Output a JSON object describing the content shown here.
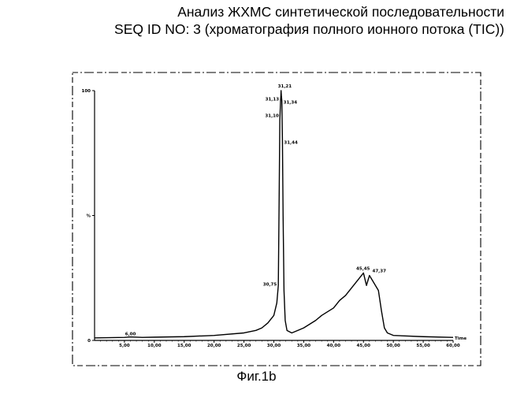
{
  "title": {
    "line1": "Анализ ЖХМС синтетической последовательности",
    "line2": "SEQ ID NO: 3 (хроматография полного ионного потока (TIC))"
  },
  "caption": "Фиг.1b",
  "chart_data": {
    "type": "line",
    "x_unit_label": "Time",
    "xlim": [
      0,
      60
    ],
    "ylim": [
      0,
      100
    ],
    "x_ticks": [
      "5,00",
      "10,00",
      "15,00",
      "20,00",
      "25,00",
      "30,00",
      "35,00",
      "40,00",
      "45,00",
      "50,00",
      "55,00",
      "60,00"
    ],
    "y_ticks": [
      {
        "value": 100,
        "label": "100"
      },
      {
        "value": 50,
        "label": "%"
      },
      {
        "value": 0,
        "label": "0"
      }
    ],
    "series": [
      {
        "x": [
          0,
          5,
          6,
          8,
          10,
          15,
          20,
          25,
          27,
          28,
          29,
          30,
          30.5,
          30.75,
          30.9,
          31.0,
          31.08,
          31.13,
          31.18,
          31.21,
          31.26,
          31.34,
          31.44,
          31.55,
          31.7,
          31.9,
          32.2,
          33,
          35,
          37,
          38,
          40,
          41,
          42,
          43,
          44,
          45,
          45.3,
          45.5,
          46,
          46.5,
          47,
          47.5,
          48,
          48.5,
          49,
          50,
          55,
          60
        ],
        "y": [
          1,
          1.2,
          1.4,
          1.2,
          1.3,
          1.5,
          2,
          3,
          4,
          5,
          7,
          10,
          15,
          22,
          60,
          88,
          93,
          96,
          98,
          100,
          98,
          96,
          80,
          50,
          20,
          8,
          4,
          3,
          5,
          8,
          10,
          13,
          16,
          18,
          21,
          24,
          27,
          24,
          22,
          26,
          24,
          22,
          20,
          12,
          5,
          3,
          2,
          1.5,
          1.2
        ]
      }
    ],
    "peak_labels": [
      {
        "x": 31.21,
        "y": 100,
        "label": "31,21"
      },
      {
        "x": 31.13,
        "y": 96,
        "label": "31,13"
      },
      {
        "x": 31.34,
        "y": 96,
        "label": "31,34"
      },
      {
        "x": 31.1,
        "y": 91,
        "label": "31,10"
      },
      {
        "x": 31.44,
        "y": 80,
        "label": "31,44"
      },
      {
        "x": 30.75,
        "y": 22,
        "label": "30,75"
      },
      {
        "x": 45.45,
        "y": 27,
        "label": "45,45"
      },
      {
        "x": 47.37,
        "y": 26,
        "label": "47,37"
      },
      {
        "x": 6.0,
        "y": 1.4,
        "label": "6,00"
      }
    ]
  }
}
